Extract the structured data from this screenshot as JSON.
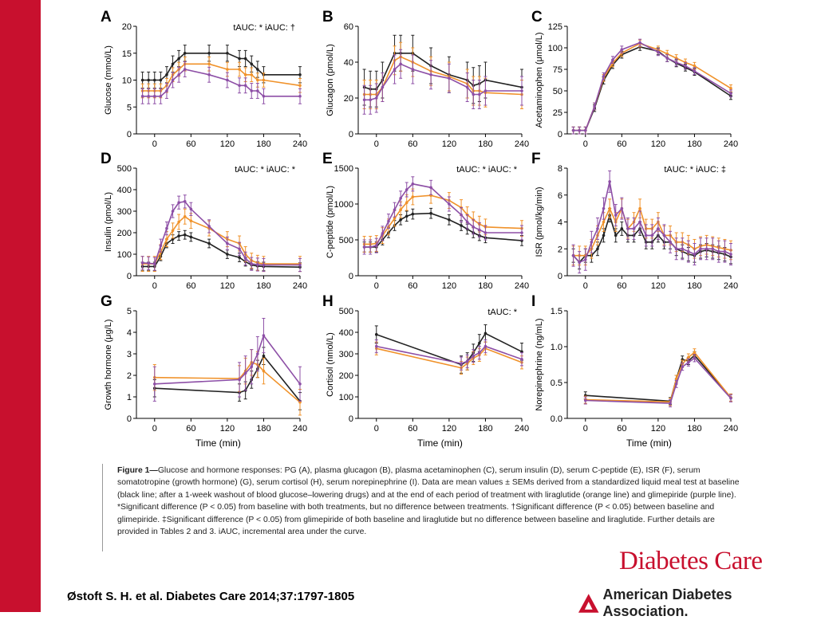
{
  "colors": {
    "baseline": "#222222",
    "liraglutide": "#f0922a",
    "glimepiride": "#8d4fa6",
    "brand_red": "#c8102e"
  },
  "caption": {
    "label": "Figure 1—",
    "text": "Glucose and hormone responses: PG (A), plasma glucagon (B), plasma acetaminophen (C), serum insulin (D), serum C-peptide (E), ISR (F), serum somatotropine (growth hormone) (G), serum cortisol (H), serum norepinephrine (I). Data are mean values ± SEMs derived from a standardized liquid meal test at baseline (black line; after a 1-week washout of blood glucose–lowering drugs) and at the end of each period of treatment with liraglutide (orange line) and glimepiride (purple line). *Significant difference (P < 0.05) from baseline with both treatments, but no difference between treatments. †Significant difference (P < 0.05) between baseline and glimepiride. ‡Significant difference (P < 0.05) from glimepiride of both baseline and liraglutide but no difference between baseline and liraglutide. Further details are provided in Tables 2 and 3. iAUC, incremental area under the curve."
  },
  "citation": "Østoft S. H. et al. Diabetes Care 2014;37:1797-1805",
  "journal_logo": "Diabetes Care",
  "ada_logo": "American Diabetes Association.",
  "chart_data": [
    {
      "panel": "A",
      "type": "line",
      "ylabel": "Glucose (mmol/L)",
      "xlabel": "",
      "ylim": [
        0,
        20
      ],
      "yticks": [
        0,
        5,
        10,
        15,
        20
      ],
      "xlim": [
        -30,
        240
      ],
      "xticks": [
        0,
        60,
        120,
        180,
        240
      ],
      "annotation": "tAUC: *   iAUC: †",
      "x": [
        -20,
        -10,
        0,
        10,
        20,
        30,
        40,
        50,
        90,
        120,
        140,
        150,
        160,
        170,
        180,
        240
      ],
      "series": [
        {
          "color": "baseline",
          "values": [
            10,
            10,
            10,
            10,
            11,
            13,
            14,
            15,
            15,
            15,
            14,
            14,
            13,
            12,
            11,
            11
          ],
          "err": 1.5
        },
        {
          "color": "liraglutide",
          "values": [
            8,
            8,
            8,
            8,
            9,
            11,
            12,
            13,
            13,
            12,
            12,
            11,
            11,
            10,
            10,
            9
          ],
          "err": 1.3
        },
        {
          "color": "glimepiride",
          "values": [
            7,
            7,
            7,
            7,
            8,
            10,
            11,
            12,
            11,
            10,
            9,
            9,
            8,
            8,
            7,
            7
          ],
          "err": 1.4
        }
      ]
    },
    {
      "panel": "B",
      "type": "line",
      "ylabel": "Glucagon (pmol/L)",
      "xlabel": "",
      "ylim": [
        0,
        60
      ],
      "yticks": [
        0,
        20,
        40,
        60
      ],
      "xlim": [
        -30,
        240
      ],
      "xticks": [
        0,
        60,
        120,
        180,
        240
      ],
      "annotation": "",
      "x": [
        -20,
        -10,
        0,
        10,
        30,
        40,
        60,
        90,
        120,
        150,
        160,
        170,
        180,
        240
      ],
      "series": [
        {
          "color": "baseline",
          "values": [
            26,
            25,
            25,
            30,
            45,
            45,
            45,
            38,
            33,
            30,
            27,
            28,
            30,
            26
          ],
          "err": 10
        },
        {
          "color": "liraglutide",
          "values": [
            22,
            22,
            22,
            26,
            41,
            43,
            40,
            35,
            32,
            28,
            24,
            24,
            23,
            22
          ],
          "err": 8
        },
        {
          "color": "glimepiride",
          "values": [
            19,
            19,
            20,
            26,
            36,
            39,
            36,
            33,
            31,
            26,
            22,
            22,
            24,
            24
          ],
          "err": 8
        }
      ]
    },
    {
      "panel": "C",
      "type": "line",
      "ylabel": "Acetaminophen (μmol/L)",
      "xlabel": "",
      "ylim": [
        0,
        125
      ],
      "yticks": [
        0,
        25,
        50,
        75,
        100,
        125
      ],
      "xlim": [
        -30,
        240
      ],
      "xticks": [
        0,
        60,
        120,
        180,
        240
      ],
      "annotation": "",
      "x": [
        -20,
        -10,
        0,
        15,
        30,
        45,
        60,
        90,
        120,
        135,
        150,
        165,
        180,
        240
      ],
      "series": [
        {
          "color": "baseline",
          "values": [
            4,
            4,
            4,
            30,
            62,
            80,
            92,
            101,
            96,
            88,
            82,
            77,
            72,
            44
          ],
          "err": 4
        },
        {
          "color": "liraglutide",
          "values": [
            4,
            4,
            4,
            32,
            65,
            82,
            94,
            105,
            98,
            93,
            88,
            83,
            79,
            53
          ],
          "err": 4
        },
        {
          "color": "glimepiride",
          "values": [
            4,
            4,
            4,
            32,
            67,
            86,
            98,
            106,
            95,
            88,
            83,
            79,
            73,
            47
          ],
          "err": 4
        }
      ]
    },
    {
      "panel": "D",
      "type": "line",
      "ylabel": "Insulin (pmol/L)",
      "xlabel": "",
      "ylim": [
        0,
        500
      ],
      "yticks": [
        0,
        100,
        200,
        300,
        400,
        500
      ],
      "xlim": [
        -30,
        240
      ],
      "xticks": [
        0,
        60,
        120,
        180,
        240
      ],
      "annotation": "tAUC: *   iAUC: *",
      "x": [
        -20,
        -10,
        0,
        10,
        20,
        30,
        40,
        50,
        60,
        90,
        120,
        140,
        150,
        160,
        170,
        180,
        240
      ],
      "series": [
        {
          "color": "baseline",
          "values": [
            43,
            43,
            43,
            90,
            150,
            170,
            185,
            190,
            180,
            150,
            100,
            85,
            65,
            50,
            45,
            43,
            40
          ],
          "err": 20
        },
        {
          "color": "liraglutide",
          "values": [
            55,
            55,
            55,
            110,
            170,
            210,
            250,
            275,
            255,
            220,
            170,
            150,
            100,
            70,
            60,
            55,
            55
          ],
          "err": 35
        },
        {
          "color": "glimepiride",
          "values": [
            60,
            58,
            55,
            140,
            220,
            300,
            340,
            345,
            310,
            230,
            150,
            125,
            80,
            55,
            52,
            50,
            50
          ],
          "err": 30
        }
      ]
    },
    {
      "panel": "E",
      "type": "line",
      "ylabel": "C-peptide (pmol/L)",
      "xlabel": "",
      "ylim": [
        0,
        1500
      ],
      "yticks": [
        0,
        500,
        1000,
        1500
      ],
      "xlim": [
        -30,
        240
      ],
      "xticks": [
        0,
        60,
        120,
        180,
        240
      ],
      "annotation": "tAUC: *   iAUC: *",
      "x": [
        -20,
        -10,
        0,
        10,
        20,
        30,
        40,
        50,
        60,
        90,
        120,
        140,
        150,
        160,
        170,
        180,
        240
      ],
      "series": [
        {
          "color": "baseline",
          "values": [
            400,
            400,
            400,
            500,
            600,
            700,
            780,
            830,
            860,
            870,
            780,
            700,
            650,
            600,
            560,
            530,
            490
          ],
          "err": 70
        },
        {
          "color": "liraglutide",
          "values": [
            440,
            440,
            450,
            560,
            680,
            800,
            920,
            1020,
            1100,
            1120,
            1050,
            950,
            850,
            780,
            720,
            680,
            660
          ],
          "err": 110
        },
        {
          "color": "glimepiride",
          "values": [
            400,
            400,
            420,
            590,
            760,
            920,
            1080,
            1200,
            1280,
            1230,
            1000,
            850,
            750,
            680,
            640,
            600,
            600
          ],
          "err": 100
        }
      ]
    },
    {
      "panel": "F",
      "type": "line",
      "ylabel": "ISR (pmol/kg/min)",
      "xlabel": "",
      "ylim": [
        0,
        8
      ],
      "yticks": [
        0,
        2,
        4,
        6,
        8
      ],
      "xlim": [
        -30,
        240
      ],
      "xticks": [
        0,
        60,
        120,
        180,
        240
      ],
      "annotation": "tAUC: *   iAUC: ‡",
      "x": [
        -20,
        -10,
        0,
        10,
        20,
        30,
        40,
        50,
        60,
        70,
        80,
        90,
        100,
        110,
        120,
        130,
        140,
        150,
        160,
        170,
        180,
        190,
        200,
        210,
        220,
        230,
        240
      ],
      "series": [
        {
          "color": "baseline",
          "values": [
            1.5,
            1,
            1.5,
            1.5,
            2,
            3,
            4.5,
            3,
            3.5,
            3,
            3,
            3.5,
            2.5,
            2.5,
            3,
            2.5,
            2.5,
            2,
            1.8,
            1.6,
            1.5,
            1.8,
            1.9,
            1.8,
            1.7,
            1.6,
            1.4
          ],
          "err": 0.5
        },
        {
          "color": "liraglutide",
          "values": [
            1.5,
            1.5,
            1.5,
            2,
            3,
            4,
            5,
            4,
            5,
            3.5,
            4,
            5,
            3.5,
            3.5,
            4,
            3,
            3,
            2.5,
            2.5,
            2.3,
            2,
            2.2,
            2.3,
            2.2,
            2.1,
            2,
            1.9
          ],
          "err": 0.7
        },
        {
          "color": "glimepiride",
          "values": [
            1.5,
            1,
            1.2,
            2.5,
            3.5,
            5,
            7,
            4.5,
            5,
            3.5,
            3.5,
            4,
            3,
            3,
            3.5,
            3,
            2.5,
            2,
            2,
            1.8,
            1.6,
            2,
            2,
            2,
            1.8,
            1.8,
            1.6
          ],
          "err": 0.8
        }
      ]
    },
    {
      "panel": "G",
      "type": "line",
      "ylabel": "Growth hormone (μg/L)",
      "xlabel": "Time (min)",
      "ylim": [
        0,
        5
      ],
      "yticks": [
        0,
        1,
        2,
        3,
        4,
        5
      ],
      "xlim": [
        -30,
        240
      ],
      "xticks": [
        0,
        60,
        120,
        180,
        240
      ],
      "annotation": "",
      "x": [
        0,
        140,
        150,
        160,
        170,
        180,
        240
      ],
      "series": [
        {
          "color": "baseline",
          "values": [
            1.4,
            1.2,
            1.3,
            1.8,
            2.3,
            2.9,
            0.8
          ],
          "err": 0.4
        },
        {
          "color": "liraglutide",
          "values": [
            1.9,
            1.85,
            2.2,
            2.6,
            2.5,
            2.2,
            0.75
          ],
          "err": 0.6
        },
        {
          "color": "glimepiride",
          "values": [
            1.6,
            1.8,
            2.1,
            2.4,
            3.0,
            3.85,
            1.6
          ],
          "err": 0.8
        }
      ]
    },
    {
      "panel": "H",
      "type": "line",
      "ylabel": "Cortisol (nmol/L)",
      "xlabel": "Time (min)",
      "ylim": [
        0,
        500
      ],
      "yticks": [
        0,
        100,
        200,
        300,
        400,
        500
      ],
      "xlim": [
        -30,
        240
      ],
      "xticks": [
        0,
        60,
        120,
        180,
        240
      ],
      "annotation": "tAUC: *",
      "x": [
        0,
        140,
        150,
        160,
        170,
        180,
        240
      ],
      "series": [
        {
          "color": "baseline",
          "values": [
            390,
            250,
            265,
            305,
            350,
            395,
            310
          ],
          "err": 40
        },
        {
          "color": "liraglutide",
          "values": [
            325,
            235,
            255,
            280,
            295,
            325,
            260
          ],
          "err": 30
        },
        {
          "color": "glimepiride",
          "values": [
            335,
            255,
            265,
            290,
            305,
            335,
            275
          ],
          "err": 30
        }
      ]
    },
    {
      "panel": "I",
      "type": "line",
      "ylabel": "Norepinephrine (ng/mL)",
      "xlabel": "Time (min)",
      "ylim": [
        0,
        1.5
      ],
      "yticks": [
        "0.0",
        "0.5",
        "1.0",
        "1.5"
      ],
      "xlim": [
        -30,
        240
      ],
      "xticks": [
        0,
        60,
        120,
        180,
        240
      ],
      "annotation": "",
      "x": [
        0,
        140,
        150,
        160,
        170,
        180,
        240
      ],
      "series": [
        {
          "color": "baseline",
          "values": [
            0.32,
            0.24,
            0.55,
            0.82,
            0.8,
            0.88,
            0.29
          ],
          "err": 0.05
        },
        {
          "color": "liraglutide",
          "values": [
            0.26,
            0.23,
            0.55,
            0.76,
            0.85,
            0.92,
            0.29
          ],
          "err": 0.05
        },
        {
          "color": "glimepiride",
          "values": [
            0.25,
            0.21,
            0.48,
            0.72,
            0.78,
            0.84,
            0.28
          ],
          "err": 0.05
        }
      ]
    }
  ]
}
